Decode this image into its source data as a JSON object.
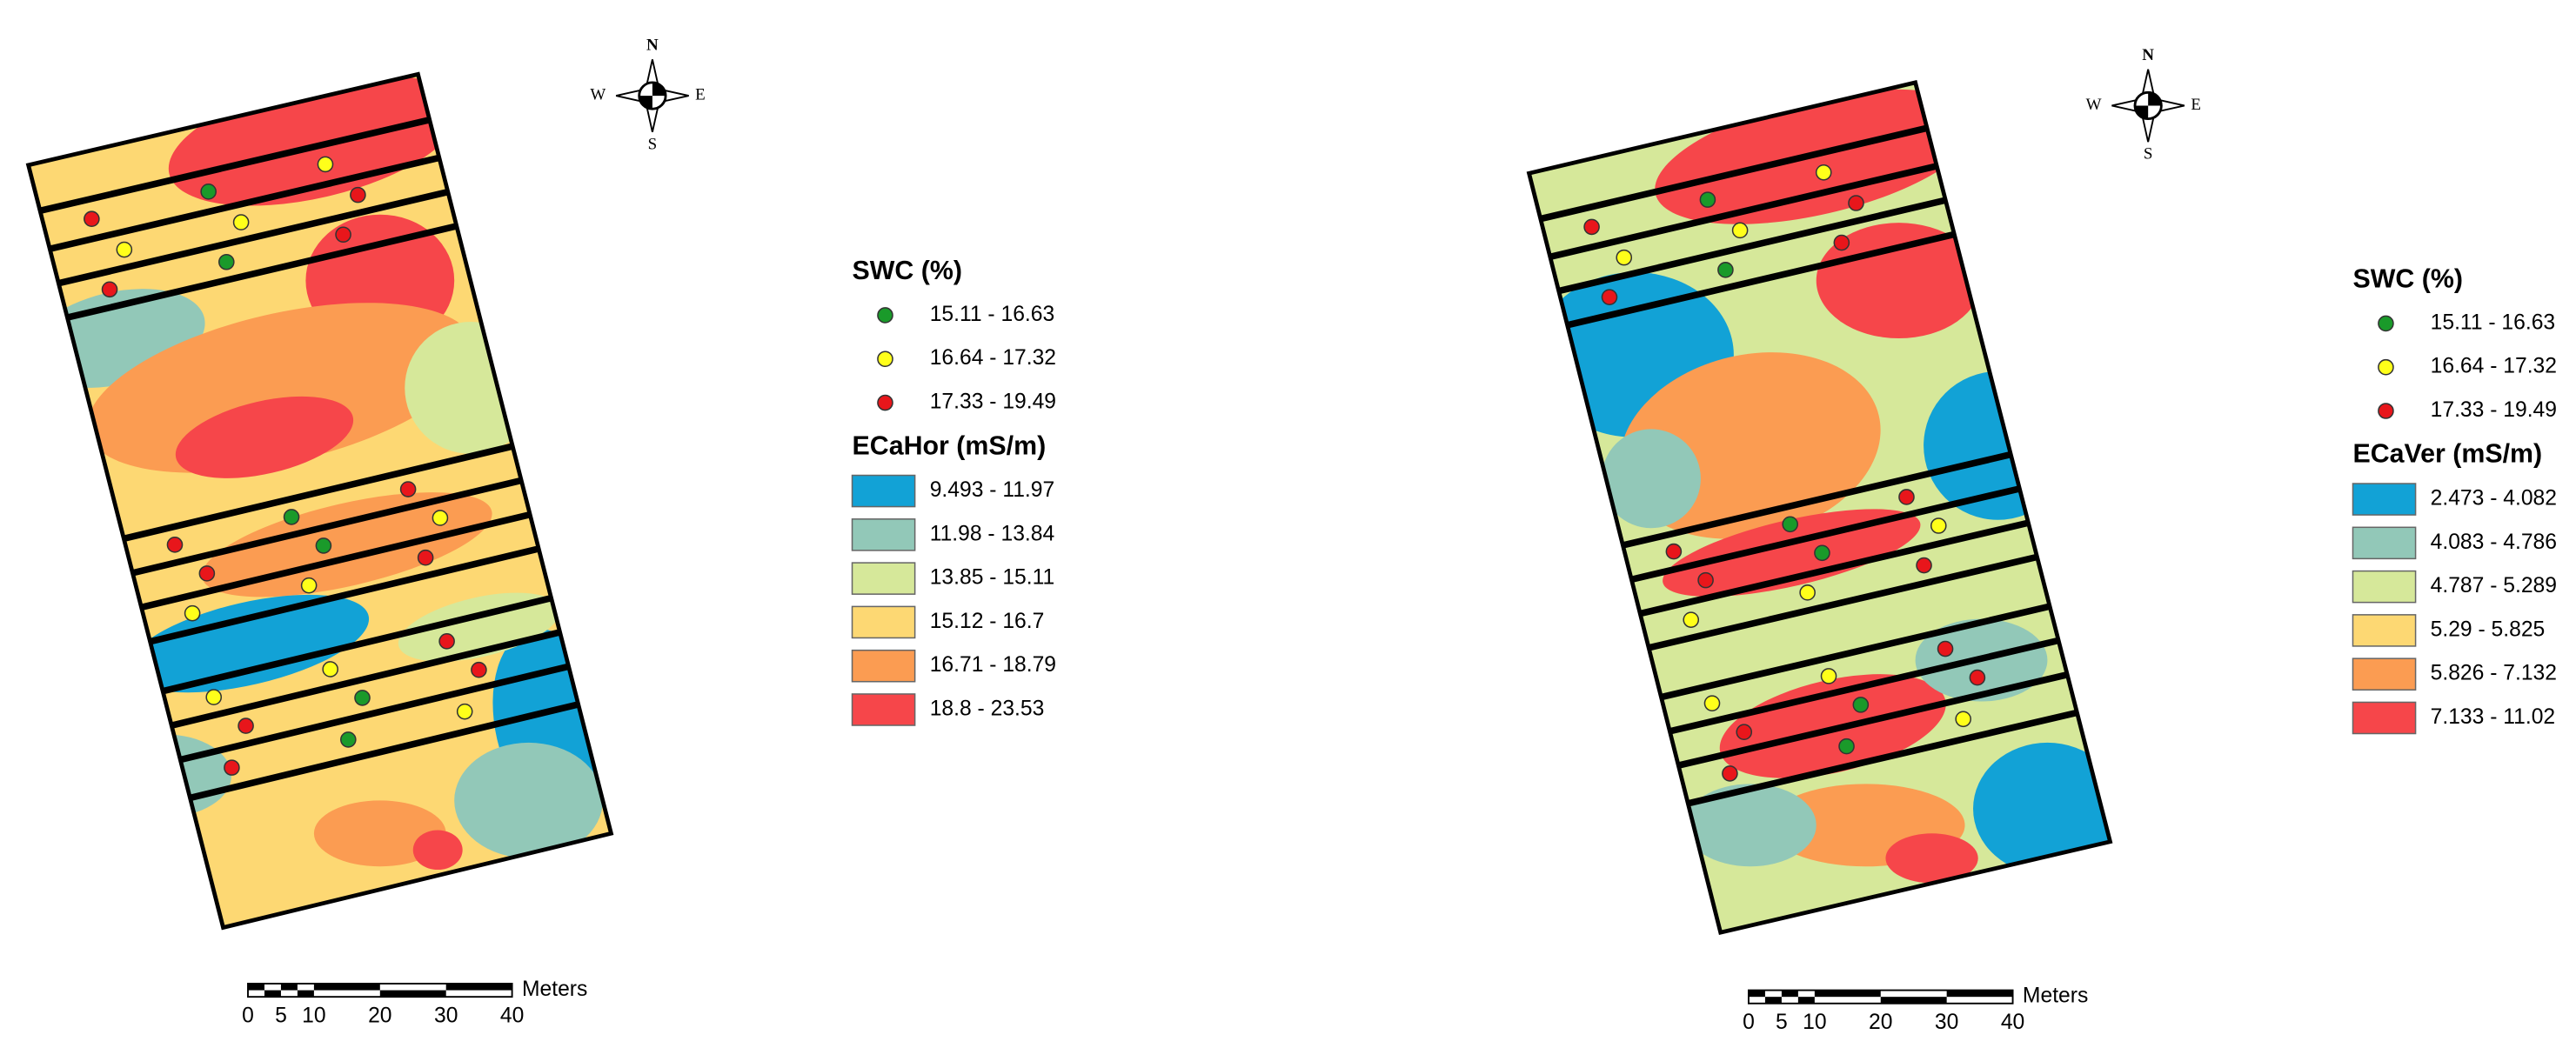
{
  "panels": [
    {
      "compass": {
        "n": "N",
        "s": "S",
        "e": "E",
        "w": "W"
      },
      "legend": {
        "swc_title": "SWC (%)",
        "swc_classes": [
          {
            "label": "15.11 - 16.63",
            "color": "#1a9a2a"
          },
          {
            "label": "16.64 - 17.32",
            "color": "#ffff1a"
          },
          {
            "label": "17.33 - 19.49",
            "color": "#e8161b"
          }
        ],
        "ec_title": "ECaHor (mS/m)",
        "ec_classes": [
          {
            "label": "9.493 - 11.97",
            "color": "#12a2d6"
          },
          {
            "label": "11.98 - 13.84",
            "color": "#92c8b8"
          },
          {
            "label": "13.85 - 15.11",
            "color": "#d6e89a"
          },
          {
            "label": "15.12 - 16.7",
            "color": "#fdd873"
          },
          {
            "label": "16.71 - 18.79",
            "color": "#fb9c52"
          },
          {
            "label": "18.8 - 23.53",
            "color": "#f6464a"
          }
        ]
      },
      "scale": {
        "unit": "Meters",
        "ticks": [
          "0",
          "5",
          "10",
          "20",
          "30",
          "40"
        ]
      }
    },
    {
      "compass": {
        "n": "N",
        "s": "S",
        "e": "E",
        "w": "W"
      },
      "legend": {
        "swc_title": "SWC (%)",
        "swc_classes": [
          {
            "label": "15.11 - 16.63",
            "color": "#1a9a2a"
          },
          {
            "label": "16.64 - 17.32",
            "color": "#ffff1a"
          },
          {
            "label": "17.33 - 19.49",
            "color": "#e8161b"
          }
        ],
        "ec_title": "ECaVer (mS/m)",
        "ec_classes": [
          {
            "label": "2.473 - 4.082",
            "color": "#12a2d6"
          },
          {
            "label": "4.083 - 4.786",
            "color": "#92c8b8"
          },
          {
            "label": "4.787 - 5.289",
            "color": "#d6e89a"
          },
          {
            "label": "5.29 - 5.825",
            "color": "#fdd873"
          },
          {
            "label": "5.826 - 7.132",
            "color": "#fb9c52"
          },
          {
            "label": "7.133 - 11.02",
            "color": "#f6464a"
          }
        ]
      },
      "scale": {
        "unit": "Meters",
        "ticks": [
          "0",
          "5",
          "10",
          "20",
          "30",
          "40"
        ]
      }
    }
  ]
}
